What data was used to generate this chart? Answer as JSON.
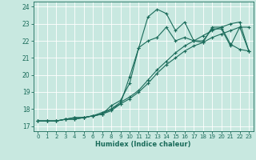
{
  "xlabel": "Humidex (Indice chaleur)",
  "background_color": "#c8e8e0",
  "grid_color": "#ffffff",
  "line_color": "#1a6b5a",
  "xlim": [
    -0.5,
    23.5
  ],
  "ylim": [
    16.7,
    24.3
  ],
  "yticks": [
    17,
    18,
    19,
    20,
    21,
    22,
    23,
    24
  ],
  "xticks": [
    0,
    1,
    2,
    3,
    4,
    5,
    6,
    7,
    8,
    9,
    10,
    11,
    12,
    13,
    14,
    15,
    16,
    17,
    18,
    19,
    20,
    21,
    22,
    23
  ],
  "line1_x": [
    0,
    1,
    2,
    3,
    4,
    5,
    6,
    7,
    8,
    9,
    10,
    11,
    12,
    13,
    14,
    15,
    16,
    17,
    18,
    19,
    20,
    21,
    22,
    23
  ],
  "line1_y": [
    17.3,
    17.3,
    17.3,
    17.4,
    17.5,
    17.5,
    17.6,
    17.7,
    18.2,
    18.5,
    19.5,
    21.6,
    23.4,
    23.85,
    23.6,
    22.6,
    23.1,
    22.0,
    21.9,
    22.8,
    22.8,
    21.8,
    21.5,
    21.4
  ],
  "line2_x": [
    0,
    1,
    2,
    3,
    4,
    5,
    6,
    7,
    8,
    9,
    10,
    11,
    12,
    13,
    14,
    15,
    16,
    17,
    18,
    19,
    20,
    21,
    22,
    23
  ],
  "line2_y": [
    17.3,
    17.3,
    17.3,
    17.4,
    17.5,
    17.5,
    17.6,
    17.7,
    17.9,
    18.3,
    19.9,
    21.6,
    22.0,
    22.2,
    22.8,
    22.0,
    22.2,
    22.0,
    22.0,
    22.7,
    22.7,
    21.7,
    22.8,
    22.8
  ],
  "line3_x": [
    0,
    1,
    2,
    3,
    4,
    5,
    6,
    7,
    8,
    9,
    10,
    11,
    12,
    13,
    14,
    15,
    16,
    17,
    18,
    19,
    20,
    21,
    22,
    23
  ],
  "line3_y": [
    17.3,
    17.3,
    17.3,
    17.4,
    17.4,
    17.5,
    17.6,
    17.7,
    18.0,
    18.3,
    18.6,
    19.0,
    19.5,
    20.1,
    20.6,
    21.0,
    21.4,
    21.7,
    21.9,
    22.2,
    22.4,
    22.6,
    22.8,
    21.4
  ],
  "line4_x": [
    0,
    1,
    2,
    3,
    4,
    5,
    6,
    7,
    8,
    9,
    10,
    11,
    12,
    13,
    14,
    15,
    16,
    17,
    18,
    19,
    20,
    21,
    22,
    23
  ],
  "line4_y": [
    17.3,
    17.3,
    17.3,
    17.4,
    17.4,
    17.5,
    17.6,
    17.8,
    18.0,
    18.4,
    18.7,
    19.1,
    19.7,
    20.3,
    20.8,
    21.3,
    21.7,
    22.0,
    22.3,
    22.6,
    22.8,
    23.0,
    23.1,
    21.4
  ]
}
